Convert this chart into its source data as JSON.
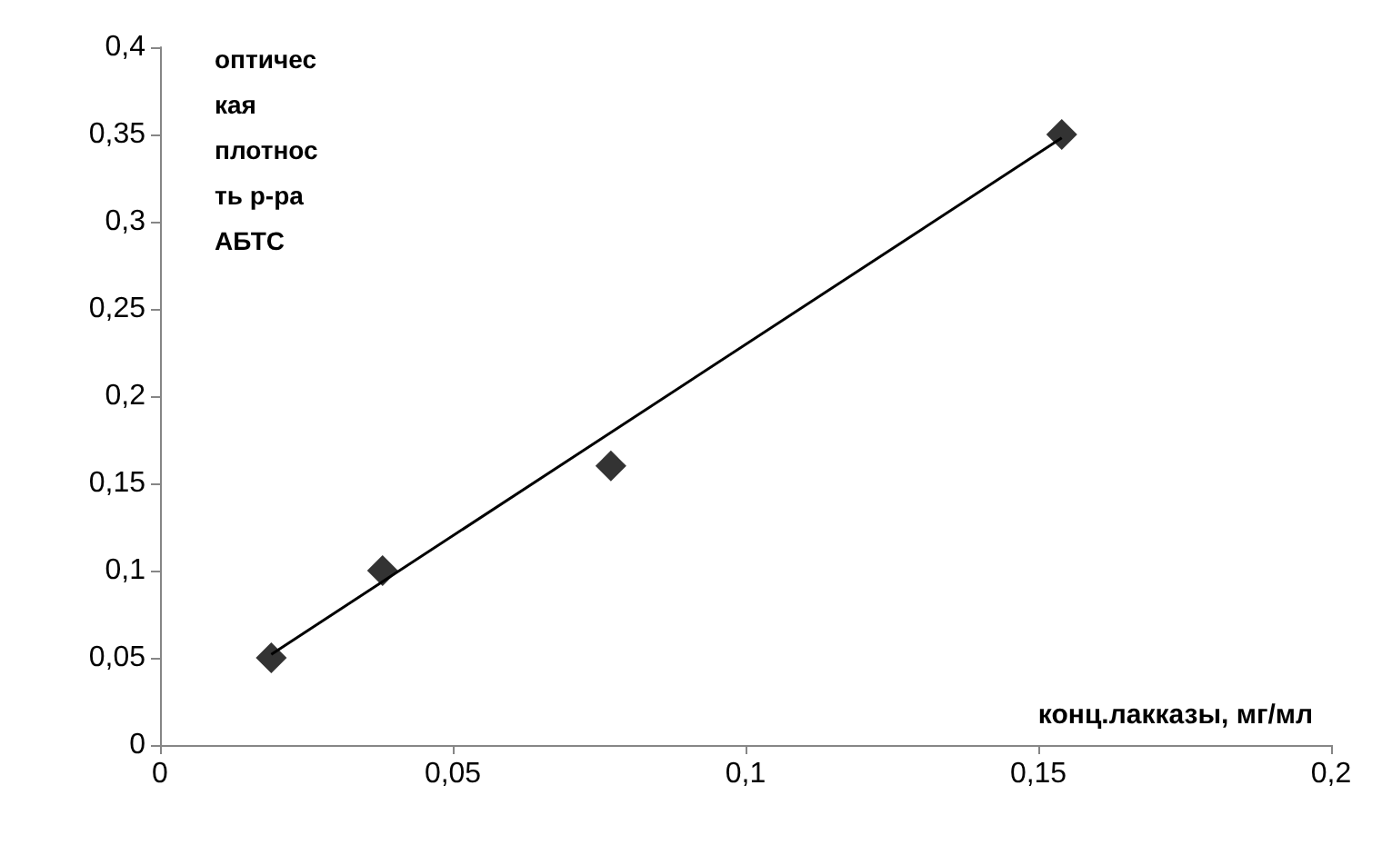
{
  "chart_data": {
    "type": "scatter",
    "xlabel": "конц.лакказы, мг/мл",
    "ylabel": "оптическая плотность р-ра АБТС",
    "marker": "diamond",
    "grid": false,
    "xlim": [
      0,
      0.2
    ],
    "xticks": [
      0,
      {
        "value": 0.05,
        "label": "0,05"
      },
      {
        "value": 0.1,
        "label": "0,1"
      },
      {
        "value": 0.15,
        "label": "0,15"
      },
      {
        "value": 0.2,
        "label": "0,2"
      }
    ],
    "ylim": [
      0,
      0.4
    ],
    "yticks": [
      0,
      {
        "value": 0.05,
        "label": "0,05"
      },
      {
        "value": 0.1,
        "label": "0,1"
      },
      {
        "value": 0.15,
        "label": "0,15"
      },
      {
        "value": 0.2,
        "label": "0,2"
      },
      {
        "value": 0.25,
        "label": "0,25"
      },
      {
        "value": 0.3,
        "label": "0,3"
      },
      {
        "value": 0.35,
        "label": "0,35"
      },
      {
        "value": 0.4,
        "label": "0,4"
      }
    ],
    "series": [
      {
        "color": "#000000",
        "x": [
          0.019,
          0.038,
          0.077,
          0.154
        ],
        "values": [
          0.05,
          0.1,
          0.16,
          0.35
        ]
      },
      {
        "type": "line",
        "marker": "none",
        "line_style": "solid",
        "color": "#000000",
        "x": [
          0.019,
          0.154
        ],
        "values": [
          0.052,
          0.348
        ]
      }
    ]
  }
}
